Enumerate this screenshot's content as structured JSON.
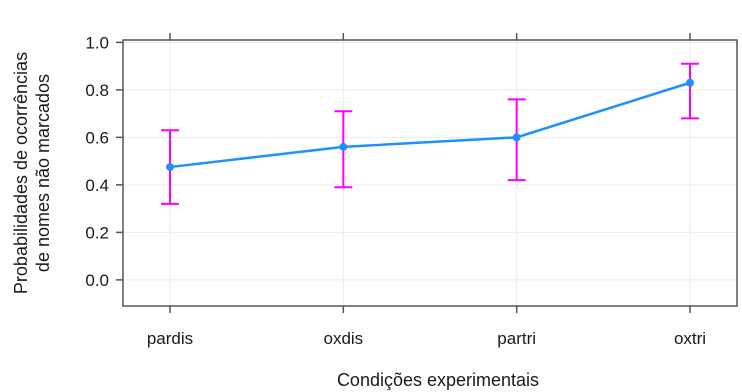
{
  "chart_data": {
    "type": "line",
    "title": "",
    "xlabel": "Condições experimentais",
    "ylabel_lines": [
      "Probabilidades de ocorrências",
      "de nomes não marcados"
    ],
    "categories": [
      "pardis",
      "oxdis",
      "partri",
      "oxtri"
    ],
    "series": [
      {
        "values": [
          0.475,
          0.56,
          0.6,
          0.83
        ],
        "lower": [
          0.32,
          0.39,
          0.42,
          0.68
        ],
        "upper": [
          0.63,
          0.71,
          0.76,
          0.91
        ]
      }
    ],
    "ylim": [
      -0.11,
      1.01
    ],
    "yticks": [
      0.0,
      0.2,
      0.4,
      0.6,
      0.8,
      1.0
    ],
    "ytick_labels": [
      "0.0",
      "0.2",
      "0.4",
      "0.6",
      "0.8",
      "1.0"
    ],
    "grid": true,
    "colors": {
      "line": "#1e90ff",
      "error_bar": "#ff00ff",
      "grid": "#ebebeb",
      "frame": "#555555"
    }
  }
}
